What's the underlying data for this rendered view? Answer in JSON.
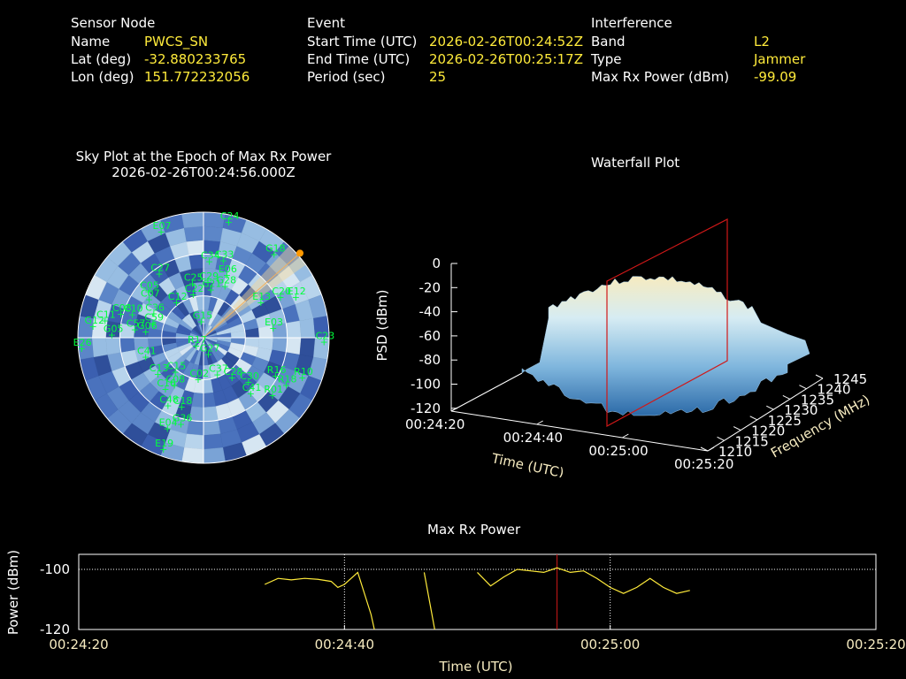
{
  "info": {
    "sensor": {
      "header": "Sensor Node",
      "rows": [
        {
          "label": "Name",
          "value": "PWCS_SN"
        },
        {
          "label": "Lat (deg)",
          "value": "-32.880233765"
        },
        {
          "label": "Lon (deg)",
          "value": "151.772232056"
        }
      ]
    },
    "event": {
      "header": "Event",
      "rows": [
        {
          "label": "Start Time (UTC)",
          "value": "2026-02-26T00:24:52Z"
        },
        {
          "label": "End Time (UTC)",
          "value": "2026-02-26T00:25:17Z"
        },
        {
          "label": "Period (sec)",
          "value": "25"
        }
      ]
    },
    "interference": {
      "header": "Interference",
      "rows": [
        {
          "label": "Band",
          "value": "L2"
        },
        {
          "label": "Type",
          "value": "Jammer"
        },
        {
          "label": "Max Rx Power (dBm)",
          "value": "-99.09"
        }
      ]
    }
  },
  "skyplot": {
    "title": "Sky Plot at the Epoch of Max Rx Power",
    "epoch": "2026-02-26T00:24:56.000Z",
    "satellites": [
      {
        "id": "E07",
        "az": -22,
        "el": 8
      },
      {
        "id": "C24",
        "az": 12,
        "el": 5
      },
      {
        "id": "G18",
        "az": 40,
        "el": 12
      },
      {
        "id": "C34",
        "az": 4,
        "el": 35
      },
      {
        "id": "C33",
        "az": 14,
        "el": 33
      },
      {
        "id": "C27",
        "az": -35,
        "el": 34
      },
      {
        "id": "E06",
        "az": 20,
        "el": 42
      },
      {
        "id": "C25",
        "az": -12,
        "el": 50
      },
      {
        "id": "C29",
        "az": 4,
        "el": 50
      },
      {
        "id": "G28",
        "az": 22,
        "el": 50
      },
      {
        "id": "C22",
        "az": -14,
        "el": 58
      },
      {
        "id": "C21",
        "az": 8,
        "el": 55
      },
      {
        "id": "C20",
        "az": 62,
        "el": 28
      },
      {
        "id": "E12",
        "az": 66,
        "el": 18
      },
      {
        "id": "E13",
        "az": 58,
        "el": 42
      },
      {
        "id": "C05",
        "az": -50,
        "el": 38
      },
      {
        "id": "C07",
        "az": -55,
        "el": 42
      },
      {
        "id": "C10",
        "az": -72,
        "el": 36
      },
      {
        "id": "C08",
        "az": -74,
        "el": 28
      },
      {
        "id": "C11",
        "az": -80,
        "el": 18
      },
      {
        "id": "C59",
        "az": -74,
        "el": 52
      },
      {
        "id": "G06",
        "az": -84,
        "el": 48
      },
      {
        "id": "G05",
        "az": -88,
        "el": 24
      },
      {
        "id": "C57",
        "az": -83,
        "el": 40
      },
      {
        "id": "C36",
        "az": -64,
        "el": 50
      },
      {
        "id": "C12",
        "az": -38,
        "el": 58
      },
      {
        "id": "G15",
        "az": -10,
        "el": 78
      },
      {
        "id": "G12",
        "az": -84,
        "el": 10
      },
      {
        "id": "C41",
        "az": -108,
        "el": 46
      },
      {
        "id": "E26",
        "az": -95,
        "el": 2
      },
      {
        "id": "R17",
        "az": -135,
        "el": 82
      },
      {
        "id": "C23",
        "az": 92,
        "el": 4
      },
      {
        "id": "E03",
        "az": 82,
        "el": 40
      },
      {
        "id": "C13",
        "az": -128,
        "el": 48
      },
      {
        "id": "C08",
        "az": -148,
        "el": 50
      },
      {
        "id": "C16",
        "az": -143,
        "el": 44
      },
      {
        "id": "C48",
        "az": -152,
        "el": 35
      },
      {
        "id": "C15",
        "az": -140,
        "el": 58
      },
      {
        "id": "E04",
        "az": -158,
        "el": 20
      },
      {
        "id": "G36",
        "az": -165,
        "el": 26
      },
      {
        "id": "E19",
        "az": -160,
        "el": 5
      },
      {
        "id": "C18",
        "az": -162,
        "el": 38
      },
      {
        "id": "G27",
        "az": 165,
        "el": 78
      },
      {
        "id": "C28",
        "az": 145,
        "el": 55
      },
      {
        "id": "C02",
        "az": -172,
        "el": 60
      },
      {
        "id": "C37",
        "az": 160,
        "el": 62
      },
      {
        "id": "C30",
        "az": 135,
        "el": 45
      },
      {
        "id": "R16",
        "az": 118,
        "el": 32
      },
      {
        "id": "R18",
        "az": 120,
        "el": 22
      },
      {
        "id": "R10",
        "az": 112,
        "el": 14
      },
      {
        "id": "R01",
        "az": 130,
        "el": 26
      },
      {
        "id": "C41",
        "az": 140,
        "el": 38
      }
    ]
  },
  "waterfall": {
    "title": "Waterfall Plot",
    "zlabel": "PSD (dBm)",
    "xlabel": "Time (UTC)",
    "ylabel": "Frequency (MHz)",
    "z_ticks": [
      "0",
      "-20",
      "-40",
      "-60",
      "-80",
      "-100",
      "-120"
    ],
    "x_ticks": [
      "00:24:20",
      "00:24:40",
      "00:25:00",
      "00:25:20"
    ],
    "y_ticks": [
      "1210",
      "1215",
      "1220",
      "1225",
      "1230",
      "1235",
      "1240",
      "1245"
    ]
  },
  "chart_data": {
    "type": "line",
    "title": "Max Rx Power",
    "xlabel": "Time (UTC)",
    "ylabel": "Power (dBm)",
    "x_ticks": [
      "00:24:20",
      "00:24:40",
      "00:25:00",
      "00:25:20"
    ],
    "y_ticks": [
      "-100",
      "-120"
    ],
    "ylim": [
      -120,
      -95
    ],
    "xlim_sec": [
      0,
      60
    ],
    "marker_time": "00:24:56",
    "grid": true,
    "series_color": "#ffeb3b",
    "series": [
      {
        "x": [
          14,
          15,
          16,
          17,
          18,
          19,
          19.5,
          20,
          21,
          22,
          22.5
        ],
        "y": [
          -105,
          -103,
          -103.5,
          -103,
          -103.3,
          -104,
          -106,
          -105,
          -101,
          -115,
          -125
        ]
      },
      {
        "x": [
          26,
          27
        ],
        "y": [
          -101,
          -125
        ]
      },
      {
        "x": [
          30,
          31,
          32,
          33,
          34,
          35,
          36,
          37,
          38,
          39,
          40,
          41,
          42,
          43,
          44,
          45,
          46
        ],
        "y": [
          -101,
          -105.5,
          -102.5,
          -100,
          -100.5,
          -101,
          -99.5,
          -101,
          -100.5,
          -103,
          -106,
          -108,
          -106,
          -103,
          -106,
          -108,
          -107
        ]
      }
    ]
  }
}
